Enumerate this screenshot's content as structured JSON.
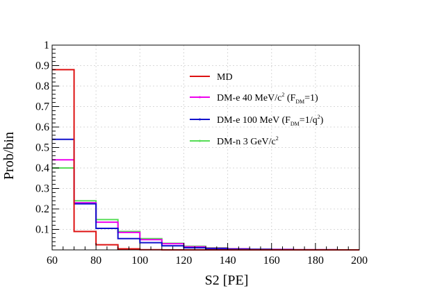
{
  "chart_data": {
    "type": "histogram-step",
    "title": "",
    "xlabel": "S2 [PE]",
    "ylabel": "Prob/bin",
    "xlim": [
      60,
      200
    ],
    "ylim": [
      0,
      1
    ],
    "grid": true,
    "legend_position": "top-right",
    "bin_edges": [
      60,
      70,
      80,
      90,
      100,
      110,
      120,
      130,
      140,
      150,
      160,
      170,
      180,
      190,
      200
    ],
    "x_ticks": [
      60,
      80,
      100,
      120,
      140,
      160,
      180,
      200
    ],
    "x_tick_labels": [
      "60",
      "80",
      "100",
      "120",
      "140",
      "160",
      "180",
      "200"
    ],
    "y_ticks": [
      0.1,
      0.2,
      0.3,
      0.4,
      0.5,
      0.6,
      0.7,
      0.8,
      0.9,
      1
    ],
    "y_tick_labels": [
      "0.1",
      "0.2",
      "0.3",
      "0.4",
      "0.5",
      "0.6",
      "0.7",
      "0.8",
      "0.9",
      "1"
    ],
    "series": [
      {
        "name": "MD",
        "legend": {
          "base": "MD",
          "sub": "",
          "mid": "",
          "sup": "",
          "tail": ""
        },
        "color": "#dd1111",
        "values": [
          0.88,
          0.09,
          0.025,
          0.005,
          0.001,
          0.0,
          0.0,
          0.0,
          0.0,
          0.0,
          0.0,
          0.0,
          0.0,
          0.0
        ]
      },
      {
        "name": "DM-e 40 MeV/c2 (FDM=1)",
        "legend": {
          "base": "DM-e 40 MeV/c",
          "sup1": "2",
          "mid": " (F",
          "sub": "DM",
          "tail": "=1)"
        },
        "color": "#ee00ee",
        "values": [
          0.44,
          0.23,
          0.135,
          0.085,
          0.05,
          0.03,
          0.015,
          0.008,
          0.005,
          0.003,
          0.002,
          0.001,
          0.001,
          0.0
        ]
      },
      {
        "name": "DM-e 100 MeV (FDM=1/q2)",
        "legend": {
          "base": "DM-e 100 MeV (F",
          "sub": "DM",
          "mid": "=1/q",
          "sup": "2",
          "tail": ")"
        },
        "color": "#1111cc",
        "values": [
          0.54,
          0.225,
          0.105,
          0.055,
          0.035,
          0.02,
          0.01,
          0.006,
          0.003,
          0.002,
          0.001,
          0.0,
          0.0,
          0.0
        ]
      },
      {
        "name": "DM-n 3 GeV/c2",
        "legend": {
          "base": "DM-n 3 GeV/c",
          "sup1": "2"
        },
        "color": "#55dd55",
        "values": [
          0.4,
          0.24,
          0.148,
          0.09,
          0.055,
          0.032,
          0.018,
          0.01,
          0.006,
          0.004,
          0.002,
          0.001,
          0.001,
          0.0
        ]
      }
    ]
  }
}
